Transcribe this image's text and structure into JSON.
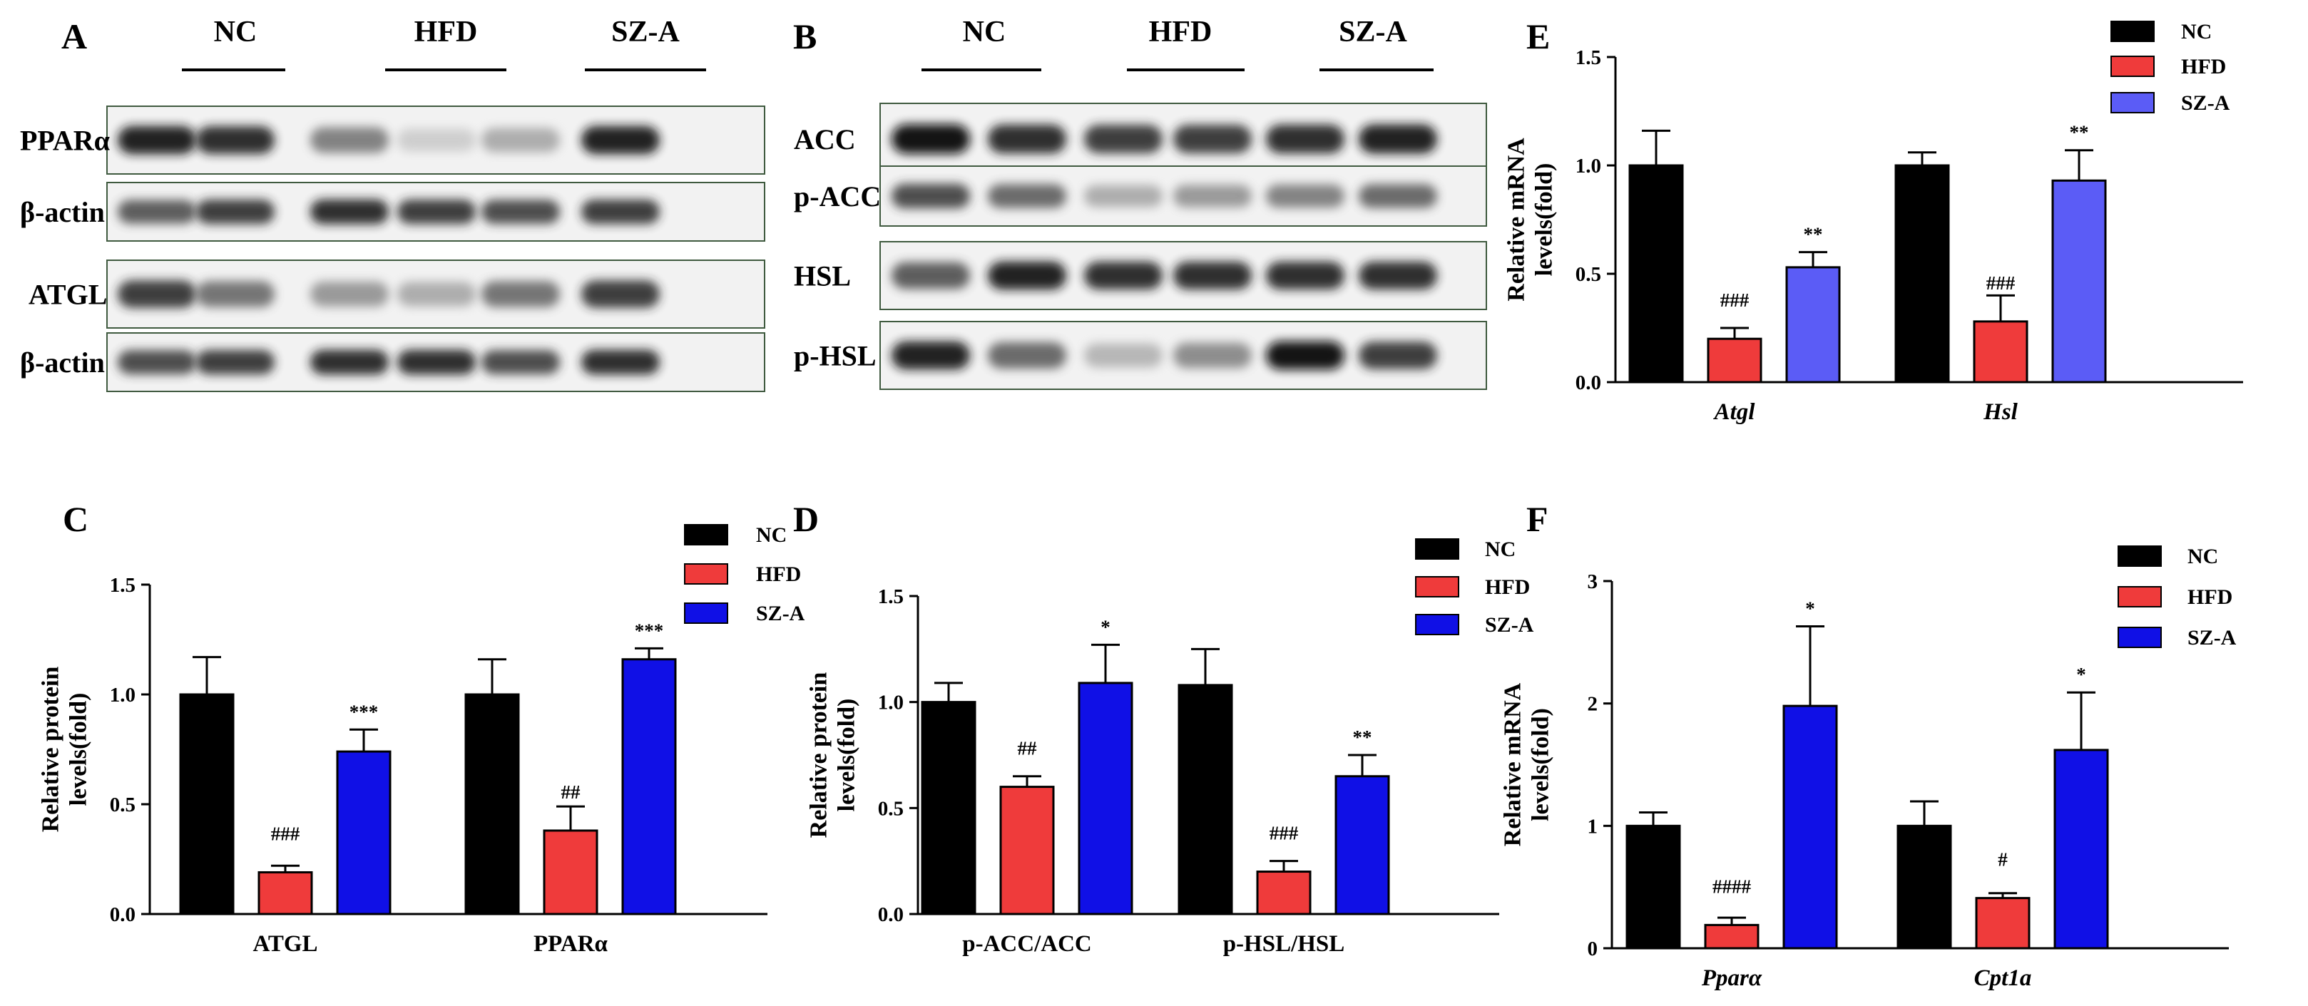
{
  "chart_data": [
    {
      "panel": "A",
      "type": "blot",
      "groups": [
        "NC",
        "HFD",
        "SZ-A"
      ],
      "rows": [
        {
          "label": "PPARα",
          "intensity": [
            0.9,
            0.85,
            0.55,
            0.15,
            0.35,
            0.9
          ]
        },
        {
          "label": "β-actin",
          "intensity": [
            0.7,
            0.8,
            0.85,
            0.8,
            0.75,
            0.8
          ]
        },
        {
          "label": "ATGL",
          "intensity": [
            0.8,
            0.6,
            0.45,
            0.35,
            0.6,
            0.8
          ]
        },
        {
          "label": "β-actin",
          "intensity": [
            0.75,
            0.8,
            0.85,
            0.85,
            0.75,
            0.85
          ]
        }
      ]
    },
    {
      "panel": "B",
      "type": "blot",
      "groups": [
        "NC",
        "HFD",
        "SZ-A"
      ],
      "rows": [
        {
          "label": "ACC",
          "intensity": [
            0.95,
            0.85,
            0.8,
            0.8,
            0.85,
            0.9
          ]
        },
        {
          "label": "p-ACC",
          "intensity": [
            0.75,
            0.65,
            0.35,
            0.45,
            0.55,
            0.65
          ]
        },
        {
          "label": "HSL",
          "intensity": [
            0.7,
            0.9,
            0.85,
            0.85,
            0.85,
            0.85
          ]
        },
        {
          "label": "p-HSL",
          "intensity": [
            0.9,
            0.65,
            0.3,
            0.5,
            0.95,
            0.8
          ]
        }
      ]
    },
    {
      "panel": "E",
      "type": "bar",
      "categories": [
        "Atgl",
        "Hsl"
      ],
      "italic_categories": true,
      "ylabel": "Relative mRNA levels(fold)",
      "ylim": [
        0,
        1.5
      ],
      "yticks": [
        "0.0",
        "0.5",
        "1.0",
        "1.5"
      ],
      "legend": "top-right",
      "series": [
        {
          "name": "NC",
          "color": "#000000",
          "values": [
            1.0,
            1.0
          ],
          "errors": [
            0.16,
            0.06
          ],
          "sig": [
            "",
            ""
          ]
        },
        {
          "name": "HFD",
          "color": "#ef3b3b",
          "values": [
            0.2,
            0.28
          ],
          "errors": [
            0.05,
            0.12
          ],
          "sig": [
            "###",
            "###"
          ]
        },
        {
          "name": "SZ-A",
          "color": "#5b5cf6",
          "values": [
            0.53,
            0.93
          ],
          "errors": [
            0.07,
            0.14
          ],
          "sig": [
            "**",
            "**"
          ]
        }
      ]
    },
    {
      "panel": "C",
      "type": "bar",
      "categories": [
        "ATGL",
        "PPARα"
      ],
      "italic_categories": false,
      "ylabel": "Relative protein levels(fold)",
      "ylim": [
        0,
        1.5
      ],
      "yticks": [
        "0.0",
        "0.5",
        "1.0",
        "1.5"
      ],
      "legend": "top-right",
      "series": [
        {
          "name": "NC",
          "color": "#000000",
          "values": [
            1.0,
            1.0
          ],
          "errors": [
            0.17,
            0.16
          ],
          "sig": [
            "",
            ""
          ]
        },
        {
          "name": "HFD",
          "color": "#ef3b3b",
          "values": [
            0.19,
            0.38
          ],
          "errors": [
            0.03,
            0.11
          ],
          "sig": [
            "###",
            "##"
          ]
        },
        {
          "name": "SZ-A",
          "color": "#1010e6",
          "values": [
            0.74,
            1.16
          ],
          "errors": [
            0.1,
            0.05
          ],
          "sig": [
            "***",
            "***"
          ]
        }
      ]
    },
    {
      "panel": "D",
      "type": "bar",
      "categories": [
        "p-ACC/ACC",
        "p-HSL/HSL"
      ],
      "italic_categories": false,
      "ylabel": "Relative protein levels(fold)",
      "ylim": [
        0,
        1.5
      ],
      "yticks": [
        "0.0",
        "0.5",
        "1.0",
        "1.5"
      ],
      "legend": "top-right",
      "series": [
        {
          "name": "NC",
          "color": "#000000",
          "values": [
            1.0,
            1.08
          ],
          "errors": [
            0.09,
            0.17
          ],
          "sig": [
            "",
            ""
          ]
        },
        {
          "name": "HFD",
          "color": "#ef3b3b",
          "values": [
            0.6,
            0.2
          ],
          "errors": [
            0.05,
            0.05
          ],
          "sig": [
            "##",
            "###"
          ]
        },
        {
          "name": "SZ-A",
          "color": "#1010e6",
          "values": [
            1.09,
            0.65
          ],
          "errors": [
            0.18,
            0.1
          ],
          "sig": [
            "*",
            "**"
          ]
        }
      ]
    },
    {
      "panel": "F",
      "type": "bar",
      "categories": [
        "Pparα",
        "Cpt1a"
      ],
      "italic_categories": true,
      "ylabel": "Relative mRNA levels(fold)",
      "ylim": [
        0,
        3
      ],
      "yticks": [
        "0",
        "1",
        "2",
        "3"
      ],
      "legend": "top-right",
      "series": [
        {
          "name": "NC",
          "color": "#000000",
          "values": [
            1.0,
            1.0
          ],
          "errors": [
            0.11,
            0.2
          ],
          "sig": [
            "",
            ""
          ]
        },
        {
          "name": "HFD",
          "color": "#ef3b3b",
          "values": [
            0.19,
            0.41
          ],
          "errors": [
            0.06,
            0.04
          ],
          "sig": [
            "####",
            "#"
          ]
        },
        {
          "name": "SZ-A",
          "color": "#1010e6",
          "values": [
            1.98,
            1.62
          ],
          "errors": [
            0.65,
            0.47
          ],
          "sig": [
            "*",
            "*"
          ]
        }
      ]
    }
  ]
}
